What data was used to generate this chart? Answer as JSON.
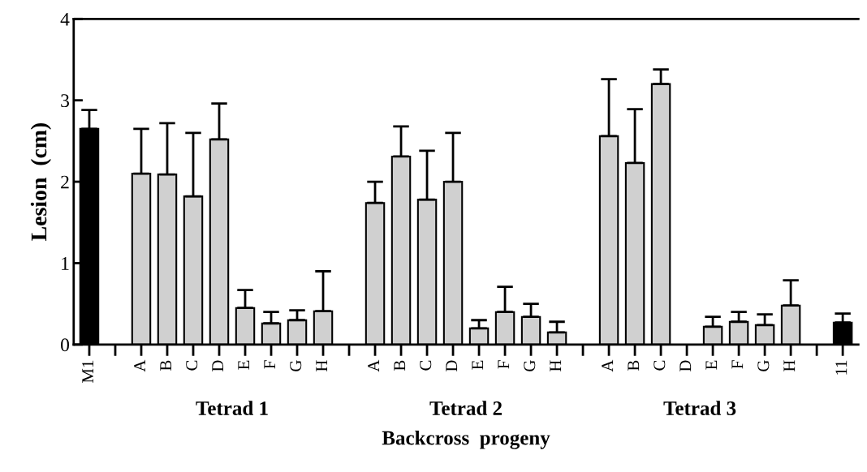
{
  "chart_data": {
    "type": "bar",
    "xlabel": "Backcross  progeny",
    "ylabel": "Lesion  (cm)",
    "categories": [
      "M1",
      null,
      "A",
      "B",
      "C",
      "D",
      "E",
      "F",
      "G",
      "H",
      null,
      "A",
      "B",
      "C",
      "D",
      "E",
      "F",
      "G",
      "H",
      null,
      "A",
      "B",
      "C",
      "D",
      "E",
      "F",
      "G",
      "H",
      null,
      "11"
    ],
    "values": [
      2.65,
      null,
      2.1,
      2.09,
      1.82,
      2.52,
      0.45,
      0.26,
      0.3,
      0.41,
      null,
      1.74,
      2.31,
      1.78,
      2.0,
      0.2,
      0.4,
      0.34,
      0.15,
      null,
      2.56,
      2.23,
      3.2,
      null,
      0.22,
      0.28,
      0.24,
      0.48,
      null,
      0.27
    ],
    "errors": [
      [
        2.65,
        2.88
      ],
      null,
      [
        2.1,
        2.65
      ],
      [
        2.09,
        2.72
      ],
      [
        1.82,
        2.6
      ],
      [
        2.52,
        2.96
      ],
      [
        0.45,
        0.67
      ],
      [
        0.26,
        0.4
      ],
      [
        0.3,
        0.42
      ],
      [
        0.41,
        0.9
      ],
      null,
      [
        1.74,
        2.0
      ],
      [
        2.31,
        2.68
      ],
      [
        1.78,
        2.38
      ],
      [
        2.0,
        2.6
      ],
      [
        0.2,
        0.3
      ],
      [
        0.4,
        0.71
      ],
      [
        0.34,
        0.5
      ],
      [
        0.15,
        0.28
      ],
      null,
      [
        2.56,
        3.26
      ],
      [
        2.23,
        2.89
      ],
      [
        3.2,
        3.38
      ],
      null,
      [
        0.22,
        0.34
      ],
      [
        0.28,
        0.4
      ],
      [
        0.24,
        0.37
      ],
      [
        0.48,
        0.79
      ],
      null,
      [
        0.27,
        0.38
      ]
    ],
    "colors": [
      "#000000",
      null,
      "#d0d0d0",
      "#d0d0d0",
      "#d0d0d0",
      "#d0d0d0",
      "#d0d0d0",
      "#d0d0d0",
      "#d0d0d0",
      "#d0d0d0",
      null,
      "#d0d0d0",
      "#d0d0d0",
      "#d0d0d0",
      "#d0d0d0",
      "#d0d0d0",
      "#d0d0d0",
      "#d0d0d0",
      "#d0d0d0",
      null,
      "#d0d0d0",
      "#d0d0d0",
      "#d0d0d0",
      null,
      "#d0d0d0",
      "#d0d0d0",
      "#d0d0d0",
      "#d0d0d0",
      null,
      "#000000"
    ],
    "ylim": [
      0,
      4
    ],
    "yticks": [
      0,
      1,
      2,
      3,
      4
    ],
    "annotations": [
      "Tetrad 1",
      "Tetrad 2",
      "Tetrad 3"
    ]
  }
}
